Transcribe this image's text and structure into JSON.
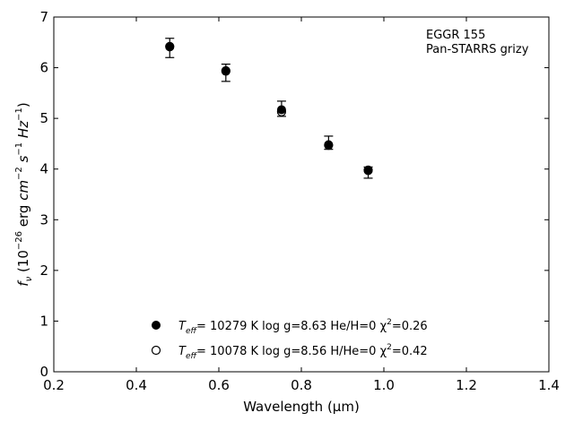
{
  "chart_data": {
    "type": "scatter",
    "xlabel": "Wavelength (μm)",
    "ylabel_parts": [
      "f",
      "ν",
      " (10",
      "−26",
      " erg ",
      "cm",
      "−2",
      " ",
      "s",
      "−1",
      " ",
      "Hz",
      "−1",
      ")"
    ],
    "xlim": [
      0.2,
      1.4
    ],
    "ylim": [
      0,
      7
    ],
    "x_ticks": [
      "0.2",
      "0.4",
      "0.6",
      "0.8",
      "1.0",
      "1.2",
      "1.4"
    ],
    "y_ticks": [
      "0",
      "1",
      "2",
      "3",
      "4",
      "5",
      "6",
      "7"
    ],
    "grid": false,
    "annotation": [
      "EGGR 155",
      "Pan-STARRS grizy"
    ],
    "observed": {
      "x": [
        0.481,
        0.617,
        0.752,
        0.866,
        0.962
      ],
      "y": [
        6.39,
        5.9,
        5.19,
        4.52,
        3.93
      ],
      "yerr": [
        0.19,
        0.17,
        0.15,
        0.13,
        0.11
      ]
    },
    "series": [
      {
        "marker": "filled",
        "x": [
          0.481,
          0.617,
          0.752,
          0.866,
          0.962
        ],
        "y": [
          6.41,
          5.93,
          5.17,
          4.48,
          3.97
        ],
        "legend_parts": [
          "T",
          "eff",
          "= 10279 K  log g=8.63  He/H=0  χ",
          "2",
          "=0.26"
        ]
      },
      {
        "marker": "open",
        "x": [
          0.481,
          0.617,
          0.752,
          0.866,
          0.962
        ],
        "y": [
          6.42,
          5.94,
          5.13,
          4.47,
          3.98
        ],
        "legend_parts": [
          "T",
          "eff",
          "= 10078 K  log g=8.56  H/He=0  χ",
          "2",
          "=0.42"
        ]
      }
    ],
    "legend_position": "lower-center"
  }
}
